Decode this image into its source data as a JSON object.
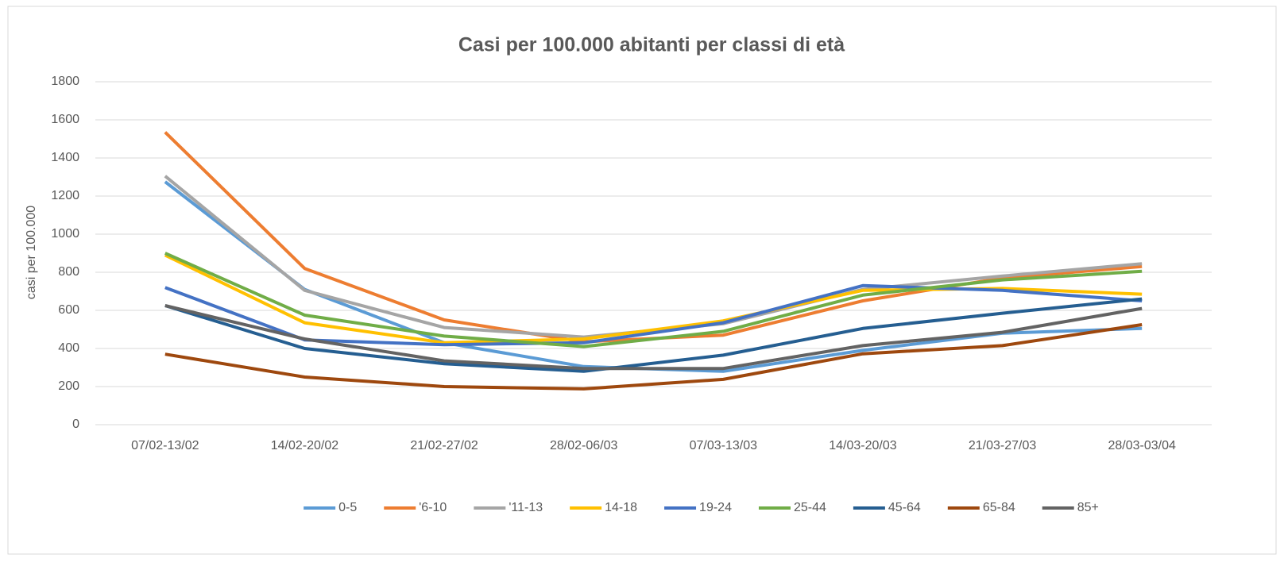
{
  "chart_data": {
    "type": "line",
    "title": "Casi per 100.000 abitanti per classi di età",
    "y_label": "casi per 100.000",
    "categories": [
      "07/02-13/02",
      "14/02-20/02",
      "21/02-27/02",
      "28/02-06/03",
      "07/03-13/03",
      "14/03-20/03",
      "21/03-27/03",
      "28/03-03/04"
    ],
    "ylim": [
      0,
      1800
    ],
    "yticks": [
      0,
      200,
      400,
      600,
      800,
      1000,
      1200,
      1400,
      1600,
      1800
    ],
    "grid": true,
    "legend": "bottom",
    "series": [
      {
        "name": "0-5",
        "color": "#5b9bd5",
        "values": [
          1275,
          710,
          430,
          305,
          280,
          390,
          480,
          505
        ]
      },
      {
        "name": "'6-10",
        "color": "#ed7d31",
        "values": [
          1535,
          820,
          550,
          435,
          470,
          650,
          770,
          830
        ]
      },
      {
        "name": "'11-13",
        "color": "#a5a5a5",
        "values": [
          1305,
          705,
          510,
          460,
          530,
          710,
          780,
          845
        ]
      },
      {
        "name": "14-18",
        "color": "#ffc000",
        "values": [
          890,
          535,
          430,
          450,
          545,
          705,
          715,
          685
        ]
      },
      {
        "name": "19-24",
        "color": "#4472c4",
        "values": [
          720,
          445,
          420,
          430,
          535,
          730,
          705,
          650
        ]
      },
      {
        "name": "25-44",
        "color": "#70ad47",
        "values": [
          900,
          575,
          465,
          410,
          490,
          680,
          760,
          805
        ]
      },
      {
        "name": "45-64",
        "color": "#255e91",
        "values": [
          625,
          400,
          320,
          280,
          365,
          505,
          585,
          660
        ]
      },
      {
        "name": "65-84",
        "color": "#9e480e",
        "values": [
          370,
          250,
          200,
          188,
          238,
          372,
          415,
          525
        ]
      },
      {
        "name": "85+",
        "color": "#636363",
        "values": [
          625,
          450,
          335,
          295,
          295,
          415,
          485,
          610
        ]
      }
    ]
  }
}
